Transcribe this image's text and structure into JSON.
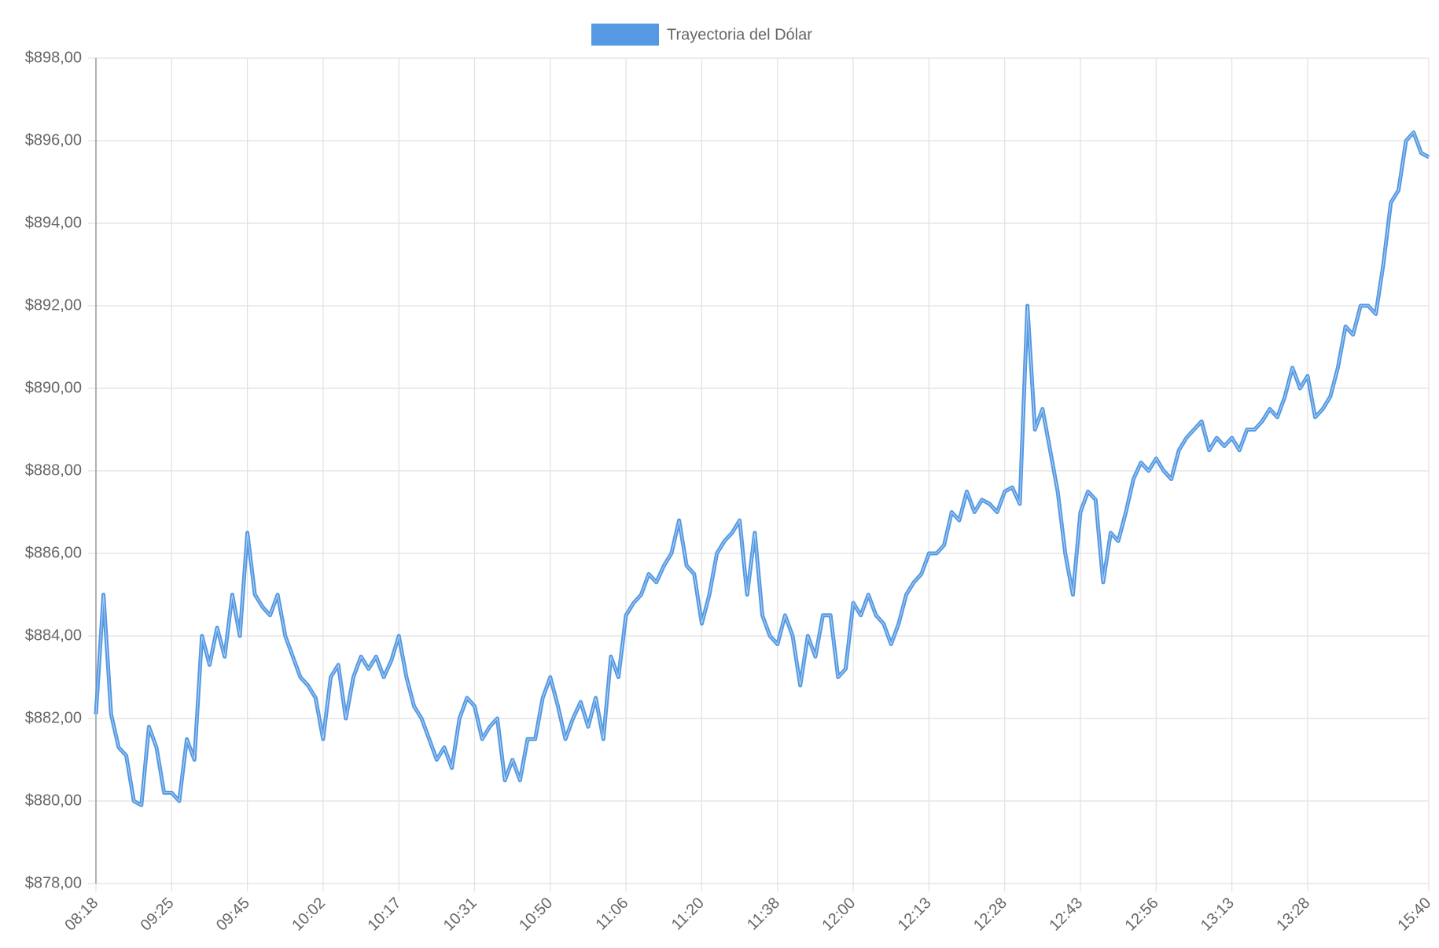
{
  "chart_data": {
    "type": "line",
    "categories": [
      "08:18",
      null,
      null,
      null,
      null,
      null,
      null,
      null,
      null,
      null,
      "09:25",
      null,
      null,
      null,
      null,
      null,
      null,
      null,
      null,
      null,
      "09:45",
      null,
      null,
      null,
      null,
      null,
      null,
      null,
      null,
      null,
      "10:02",
      null,
      null,
      null,
      null,
      null,
      null,
      null,
      null,
      null,
      "10:17",
      null,
      null,
      null,
      null,
      null,
      null,
      null,
      null,
      null,
      "10:31",
      null,
      null,
      null,
      null,
      null,
      null,
      null,
      null,
      null,
      "10:50",
      null,
      null,
      null,
      null,
      null,
      null,
      null,
      null,
      null,
      "11:06",
      null,
      null,
      null,
      null,
      null,
      null,
      null,
      null,
      null,
      "11:20",
      null,
      null,
      null,
      null,
      null,
      null,
      null,
      null,
      null,
      "11:38",
      null,
      null,
      null,
      null,
      null,
      null,
      null,
      null,
      null,
      "12:00",
      null,
      null,
      null,
      null,
      null,
      null,
      null,
      null,
      null,
      "12:13",
      null,
      null,
      null,
      null,
      null,
      null,
      null,
      null,
      null,
      "12:28",
      null,
      null,
      null,
      null,
      null,
      null,
      null,
      null,
      null,
      "12:43",
      null,
      null,
      null,
      null,
      null,
      null,
      null,
      null,
      null,
      "12:56",
      null,
      null,
      null,
      null,
      null,
      null,
      null,
      null,
      null,
      "13:13",
      null,
      null,
      null,
      null,
      null,
      null,
      null,
      null,
      null,
      "13:28",
      null,
      null,
      null,
      null,
      null,
      null,
      null,
      null,
      null,
      null,
      null,
      null,
      null,
      null,
      null,
      "15:40"
    ],
    "series": [
      {
        "name": "Trayectoria del Dólar",
        "color": "#5599e2",
        "values": [
          882.1,
          885.0,
          882.1,
          881.3,
          881.1,
          880.0,
          879.9,
          881.8,
          881.3,
          880.2,
          880.2,
          880.0,
          881.5,
          881.0,
          884.0,
          883.3,
          884.2,
          883.5,
          885.0,
          884.0,
          886.5,
          885.0,
          884.7,
          884.5,
          885.0,
          884.0,
          883.5,
          883.0,
          882.8,
          882.5,
          881.5,
          883.0,
          883.3,
          882.0,
          883.0,
          883.5,
          883.2,
          883.5,
          883.0,
          883.4,
          884.0,
          883.0,
          882.3,
          882.0,
          881.5,
          881.0,
          881.3,
          880.8,
          882.0,
          882.5,
          882.3,
          881.5,
          881.8,
          882.0,
          880.5,
          881.0,
          880.5,
          881.5,
          881.5,
          882.5,
          883.0,
          882.3,
          881.5,
          882.0,
          882.4,
          881.8,
          882.5,
          881.5,
          883.5,
          883.0,
          884.5,
          884.8,
          885.0,
          885.5,
          885.3,
          885.7,
          886.0,
          886.8,
          885.7,
          885.5,
          884.3,
          885.0,
          886.0,
          886.3,
          886.5,
          886.8,
          885.0,
          886.5,
          884.5,
          884.0,
          883.8,
          884.5,
          884.0,
          882.8,
          884.0,
          883.5,
          884.5,
          884.5,
          883.0,
          883.2,
          884.8,
          884.5,
          885.0,
          884.5,
          884.3,
          883.8,
          884.3,
          885.0,
          885.3,
          885.5,
          886.0,
          886.0,
          886.2,
          887.0,
          886.8,
          887.5,
          887.0,
          887.3,
          887.2,
          887.0,
          887.5,
          887.6,
          887.2,
          892.0,
          889.0,
          889.5,
          888.5,
          887.5,
          886.0,
          885.0,
          887.0,
          887.5,
          887.3,
          885.3,
          886.5,
          886.3,
          887.0,
          887.8,
          888.2,
          888.0,
          888.3,
          888.0,
          887.8,
          888.5,
          888.8,
          889.0,
          889.2,
          888.5,
          888.8,
          888.6,
          888.8,
          888.5,
          889.0,
          889.0,
          889.2,
          889.5,
          889.3,
          889.8,
          890.5,
          890.0,
          890.3,
          889.3,
          889.5,
          889.8,
          890.5,
          891.5,
          891.3,
          892.0,
          892.0,
          891.8,
          893.0,
          894.5,
          894.8,
          896.0,
          896.2,
          895.7,
          895.6
        ]
      }
    ],
    "ylim": [
      878,
      898
    ],
    "yticks": [
      {
        "value": 878,
        "label": "$878,00"
      },
      {
        "value": 880,
        "label": "$880,00"
      },
      {
        "value": 882,
        "label": "$882,00"
      },
      {
        "value": 884,
        "label": "$884,00"
      },
      {
        "value": 886,
        "label": "$886,00"
      },
      {
        "value": 888,
        "label": "$888,00"
      },
      {
        "value": 890,
        "label": "$890,00"
      },
      {
        "value": 892,
        "label": "$892,00"
      },
      {
        "value": 894,
        "label": "$894,00"
      },
      {
        "value": 896,
        "label": "$896,00"
      },
      {
        "value": 898,
        "label": "$898,00"
      }
    ],
    "grid": true,
    "legend": "top"
  }
}
